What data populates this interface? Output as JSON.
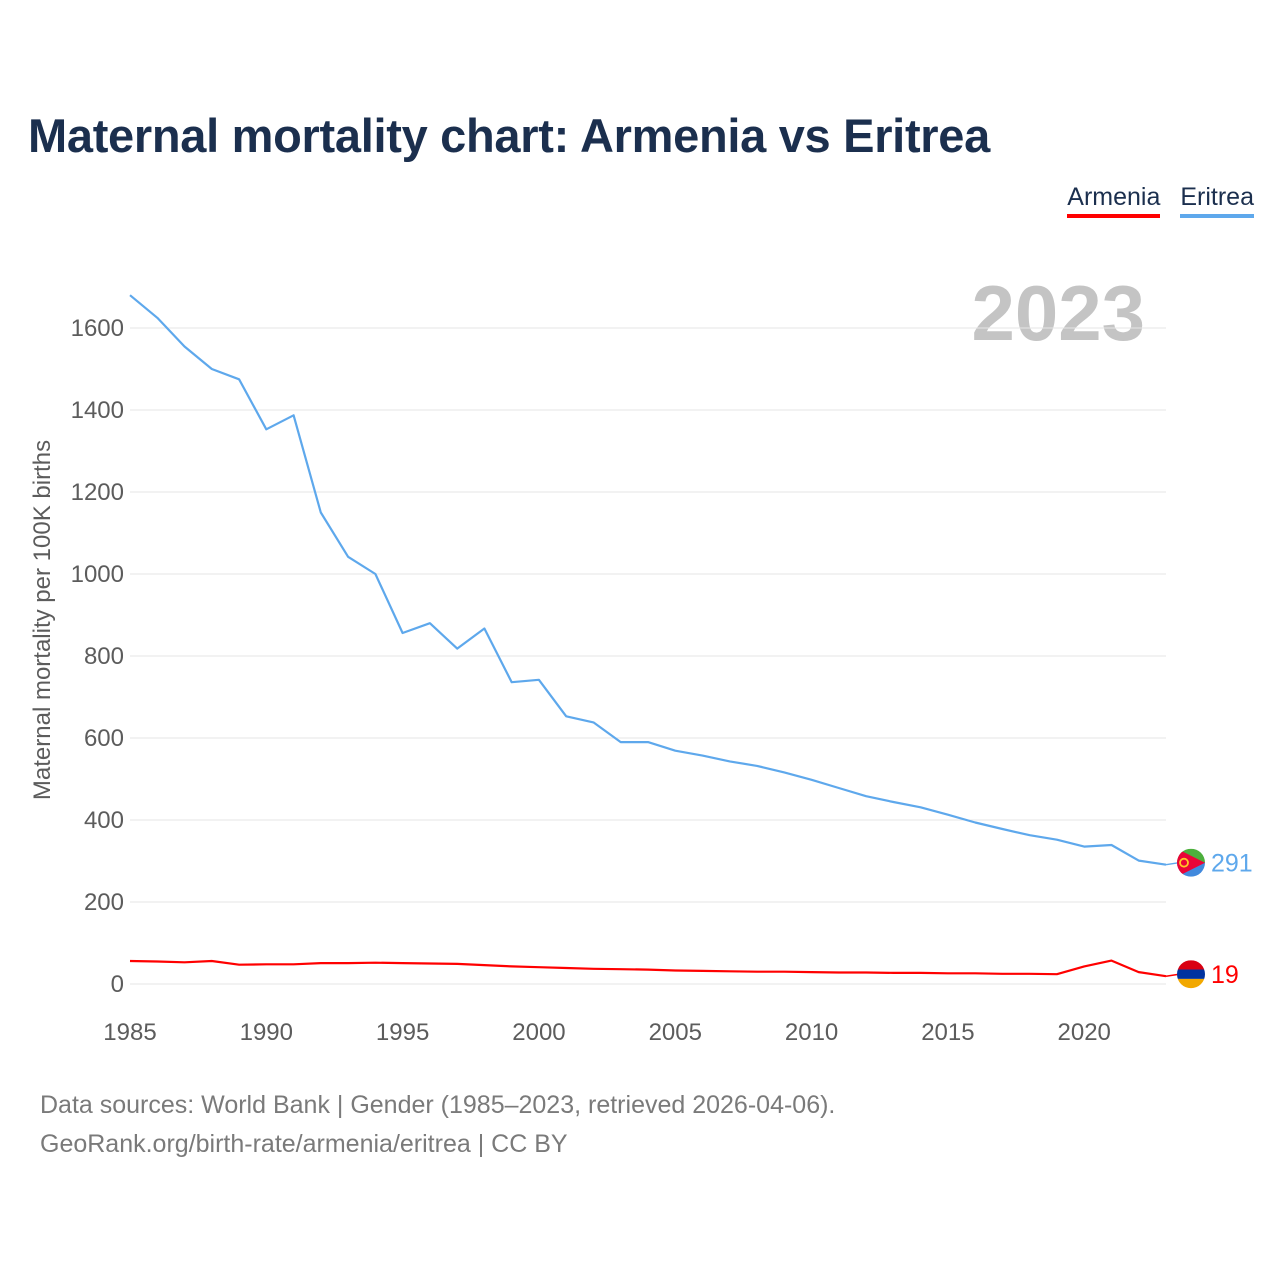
{
  "title": "Maternal mortality chart: Armenia vs Eritrea",
  "year_badge": "2023",
  "legend": [
    {
      "label": "Armenia",
      "color": "#ff0000"
    },
    {
      "label": "Eritrea",
      "color": "#5ea8ec"
    }
  ],
  "footer": {
    "line1": "Data sources: World Bank | Gender (1985–2023, retrieved 2026-04-06).",
    "line2": "GeoRank.org/birth-rate/armenia/eritrea | CC BY"
  },
  "chart_data": {
    "type": "line",
    "title": "Maternal mortality chart: Armenia vs Eritrea",
    "xlabel": "",
    "ylabel": "Maternal mortality per 100K births",
    "xlim": [
      1985,
      2023
    ],
    "ylim": [
      0,
      1700
    ],
    "x_ticks": [
      1985,
      1990,
      1995,
      2000,
      2005,
      2010,
      2015,
      2020
    ],
    "y_ticks": [
      0,
      200,
      400,
      600,
      800,
      1000,
      1200,
      1400,
      1600
    ],
    "grid": true,
    "x": [
      1985,
      1986,
      1987,
      1988,
      1989,
      1990,
      1991,
      1992,
      1993,
      1994,
      1995,
      1996,
      1997,
      1998,
      1999,
      2000,
      2001,
      2002,
      2003,
      2004,
      2005,
      2006,
      2007,
      2008,
      2009,
      2010,
      2011,
      2012,
      2013,
      2014,
      2015,
      2016,
      2017,
      2018,
      2019,
      2020,
      2021,
      2022,
      2023
    ],
    "series": [
      {
        "name": "Armenia",
        "color": "#ff0000",
        "end_label": "19",
        "values": [
          56,
          55,
          53,
          56,
          47,
          48,
          48,
          51,
          51,
          52,
          51,
          50,
          49,
          46,
          43,
          41,
          39,
          37,
          36,
          35,
          33,
          32,
          31,
          30,
          30,
          29,
          28,
          28,
          27,
          27,
          26,
          26,
          25,
          25,
          24,
          43,
          57,
          29,
          19
        ]
      },
      {
        "name": "Eritrea",
        "color": "#5ea8ec",
        "end_label": "291",
        "values": [
          1680,
          1625,
          1555,
          1500,
          1475,
          1353,
          1387,
          1150,
          1042,
          1000,
          856,
          880,
          818,
          867,
          736,
          742,
          653,
          638,
          590,
          590,
          569,
          557,
          543,
          532,
          516,
          498,
          478,
          458,
          444,
          431,
          413,
          394,
          378,
          363,
          352,
          335,
          339,
          301,
          291
        ]
      }
    ]
  }
}
